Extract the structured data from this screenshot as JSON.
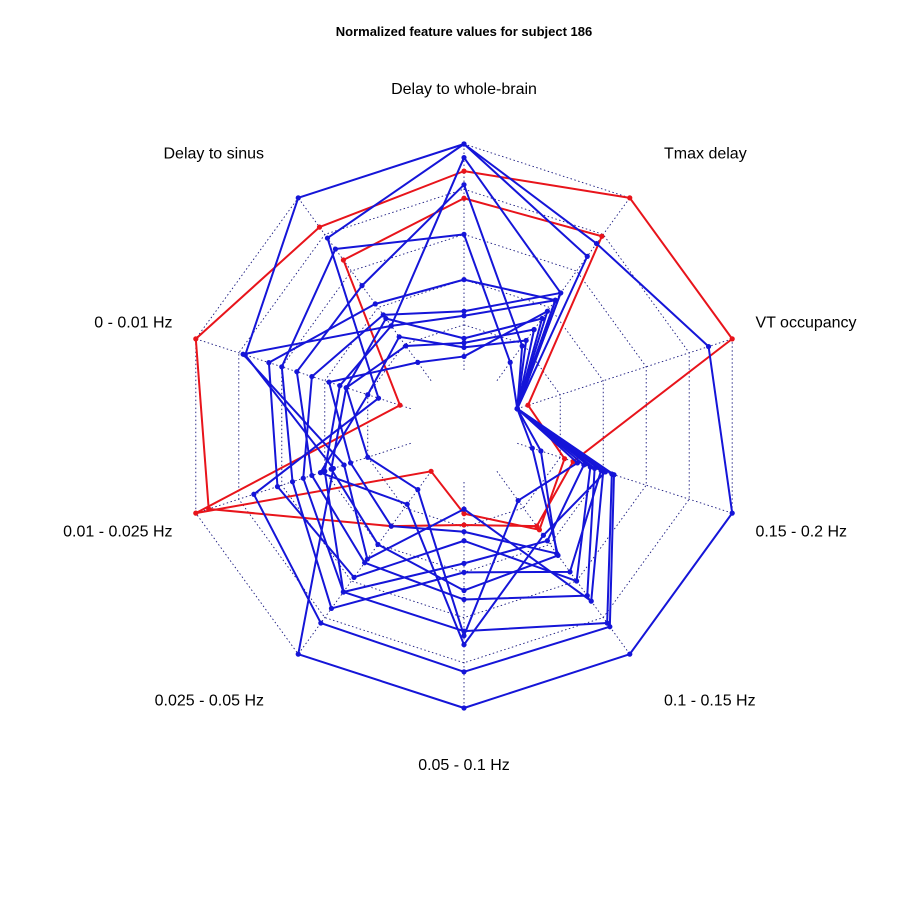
{
  "chart_data": {
    "type": "radar",
    "title": "Normalized feature values for subject 186",
    "axes": [
      "Delay to whole-brain",
      "Tmax delay",
      "VT occupancy",
      "0.15 - 0.2 Hz",
      "0.1 - 0.15 Hz",
      "0.05 - 0.1 Hz",
      "0.025 - 0.05 Hz",
      "0.01 - 0.025 Hz",
      "0 - 0.01 Hz",
      "Delay to sinus"
    ],
    "range": [
      0,
      1
    ],
    "grid_levels": 5,
    "colors": {
      "red_series": "#e8141b",
      "blue_series": "#1515d8"
    },
    "series": [
      {
        "color": "#e8141b",
        "values": [
          0.88,
          1.0,
          1.0,
          0.26,
          0.3,
          0.19,
          0.3,
          0.94,
          1.0,
          0.84
        ]
      },
      {
        "color": "#e8141b",
        "values": [
          0.76,
          0.79,
          0.05,
          0.22,
          0.32,
          0.14,
          0.0,
          1.0,
          0.05,
          0.66
        ]
      },
      {
        "color": "#1515d8",
        "values": [
          1.0,
          0.75,
          0.89,
          1.0,
          1.0,
          1.0,
          1.0,
          0.36,
          0.77,
          1.0
        ]
      },
      {
        "color": "#1515d8",
        "values": [
          1.0,
          0.68,
          0.0,
          0.45,
          0.85,
          0.84,
          0.83,
          0.73,
          0.15,
          0.78
        ]
      },
      {
        "color": "#1515d8",
        "values": [
          0.94,
          0.48,
          0.0,
          0.44,
          0.83,
          0.66,
          0.66,
          0.4,
          0.33,
          0.3
        ]
      },
      {
        "color": "#1515d8",
        "values": [
          0.82,
          0.19,
          0.0,
          0.36,
          0.68,
          0.52,
          0.5,
          0.46,
          0.53,
          0.52
        ]
      },
      {
        "color": "#1515d8",
        "values": [
          0.6,
          0.1,
          0.0,
          0.39,
          0.55,
          0.4,
          0.75,
          0.55,
          0.6,
          0.72
        ]
      },
      {
        "color": "#1515d8",
        "values": [
          0.4,
          0.44,
          0.0,
          0.34,
          0.6,
          0.26,
          0.58,
          0.62,
          0.66,
          0.42
        ]
      },
      {
        "color": "#1515d8",
        "values": [
          0.26,
          0.48,
          0.0,
          0.31,
          0.38,
          0.36,
          0.66,
          0.5,
          0.46,
          0.36
        ]
      },
      {
        "color": "#1515d8",
        "values": [
          0.24,
          0.44,
          0.0,
          0.4,
          0.71,
          0.12,
          0.48,
          0.31,
          0.78,
          0.3
        ]
      },
      {
        "color": "#1515d8",
        "values": [
          0.14,
          0.34,
          0.0,
          0.28,
          0.16,
          0.68,
          0.1,
          0.2,
          0.3,
          0.34
        ]
      },
      {
        "color": "#1515d8",
        "values": [
          0.12,
          0.28,
          0.0,
          0.07,
          0.46,
          0.48,
          0.4,
          0.37,
          0.3,
          0.19
        ]
      },
      {
        "color": "#1515d8",
        "values": [
          0.06,
          0.38,
          0.0,
          0.11,
          0.45,
          0.22,
          0.3,
          0.28,
          0.38,
          0.1
        ]
      },
      {
        "color": "#1515d8",
        "values": [
          0.1,
          0.22,
          0.0,
          0.41,
          0.35,
          0.72,
          0.18,
          0.42,
          0.2,
          0.24
        ]
      }
    ]
  }
}
